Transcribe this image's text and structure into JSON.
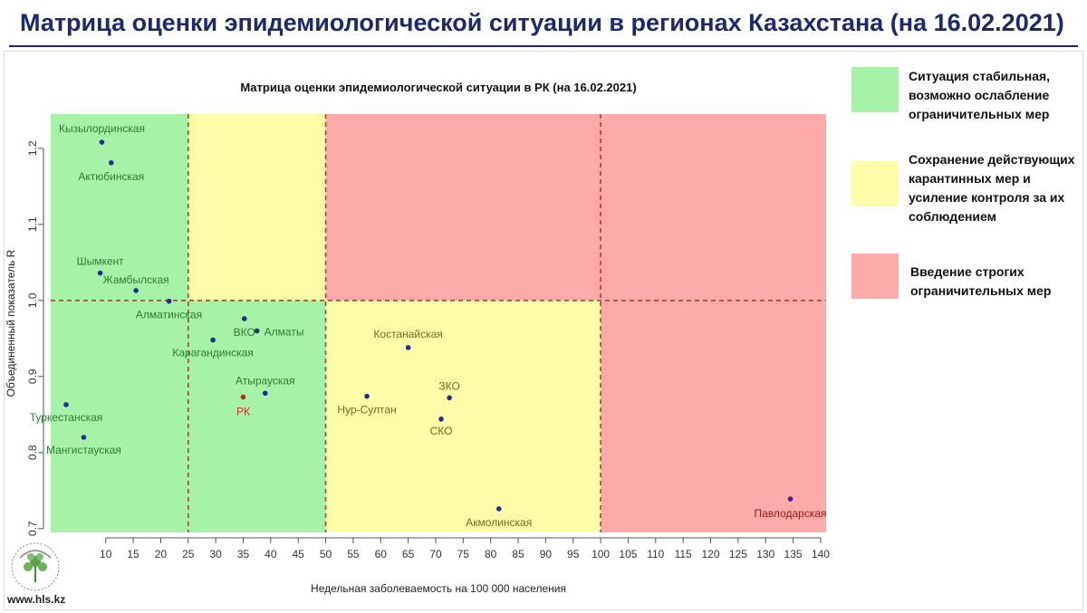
{
  "header": {
    "title": "Матрица оценки эпидемиологической ситуации в регионах Казахстана (на 16.02.2021)"
  },
  "legend": [
    {
      "color": "#a6f2a6",
      "text": "Ситуация стабильная, возможно ослабление ограничительных мер"
    },
    {
      "color": "#fdfda9",
      "text": "Сохранение действующих карантинных мер и усиление контроля за их соблюдением"
    },
    {
      "color": "#fdaaaa",
      "text": "Введение строгих ограничительных мер"
    }
  ],
  "footer": {
    "site": "www.hls.kz"
  },
  "chart_data": {
    "type": "scatter",
    "title": "Матрица оценки эпидемиологической ситуации в РК (на 16.02.2021)",
    "xlabel": "Недельная заболеваемость на 100 000 населения",
    "ylabel": "Объединенный показатель R",
    "xlim": [
      0,
      141
    ],
    "ylim": [
      0.695,
      1.245
    ],
    "x_ticks": [
      10,
      15,
      20,
      25,
      30,
      35,
      40,
      45,
      50,
      55,
      60,
      65,
      70,
      75,
      80,
      85,
      90,
      95,
      100,
      105,
      110,
      115,
      120,
      125,
      130,
      135,
      140
    ],
    "y_ticks": [
      0.7,
      0.8,
      0.9,
      1.0,
      1.1,
      1.2
    ],
    "thresholds": {
      "x": [
        25,
        50,
        100
      ],
      "y": 1.0
    },
    "zones": [
      {
        "x": [
          0,
          25
        ],
        "y": [
          1.0,
          1.245
        ],
        "color": "#a6f2a6"
      },
      {
        "x": [
          25,
          50
        ],
        "y": [
          1.0,
          1.245
        ],
        "color": "#fdfda9"
      },
      {
        "x": [
          50,
          141
        ],
        "y": [
          1.0,
          1.245
        ],
        "color": "#fdaaaa"
      },
      {
        "x": [
          0,
          50
        ],
        "y": [
          0.695,
          1.0
        ],
        "color": "#a6f2a6"
      },
      {
        "x": [
          50,
          100
        ],
        "y": [
          0.695,
          1.0
        ],
        "color": "#fdfda9"
      },
      {
        "x": [
          100,
          141
        ],
        "y": [
          0.695,
          1.0
        ],
        "color": "#fdaaaa"
      }
    ],
    "threshold_color": "#c0392b",
    "label_colors": {
      "green": "#2e7d32",
      "yellow": "#7a6a10",
      "red": "#a01a1a",
      "rk": "#c0392b"
    },
    "points": [
      {
        "name": "Кызылординская",
        "x": 9.3,
        "y": 1.208,
        "zone": "green"
      },
      {
        "name": "Актюбинская",
        "x": 11.0,
        "y": 1.181,
        "zone": "green"
      },
      {
        "name": "Шымкент",
        "x": 9.0,
        "y": 1.036,
        "zone": "green"
      },
      {
        "name": "Жамбылская",
        "x": 15.5,
        "y": 1.013,
        "zone": "green"
      },
      {
        "name": "Алматинская",
        "x": 21.5,
        "y": 0.999,
        "zone": "green"
      },
      {
        "name": "ВКО",
        "x": 35.2,
        "y": 0.976,
        "zone": "green"
      },
      {
        "name": "Алматы",
        "x": 37.5,
        "y": 0.96,
        "zone": "green"
      },
      {
        "name": "Карагандинская",
        "x": 29.5,
        "y": 0.948,
        "zone": "green"
      },
      {
        "name": "Атырауская",
        "x": 39.0,
        "y": 0.878,
        "zone": "green"
      },
      {
        "name": "РК",
        "x": 35.0,
        "y": 0.873,
        "zone": "rk"
      },
      {
        "name": "Туркестанская",
        "x": 2.8,
        "y": 0.863,
        "zone": "green"
      },
      {
        "name": "Мангистауская",
        "x": 6.0,
        "y": 0.82,
        "zone": "green"
      },
      {
        "name": "Костанайская",
        "x": 65.0,
        "y": 0.938,
        "zone": "yellow"
      },
      {
        "name": "ЗКО",
        "x": 72.5,
        "y": 0.872,
        "zone": "yellow"
      },
      {
        "name": "Нур-Султан",
        "x": 57.5,
        "y": 0.874,
        "zone": "yellow"
      },
      {
        "name": "СКО",
        "x": 71.0,
        "y": 0.844,
        "zone": "yellow"
      },
      {
        "name": "Акмолинская",
        "x": 81.5,
        "y": 0.726,
        "zone": "yellow"
      },
      {
        "name": "Павлодарская",
        "x": 134.5,
        "y": 0.739,
        "zone": "red"
      }
    ]
  }
}
